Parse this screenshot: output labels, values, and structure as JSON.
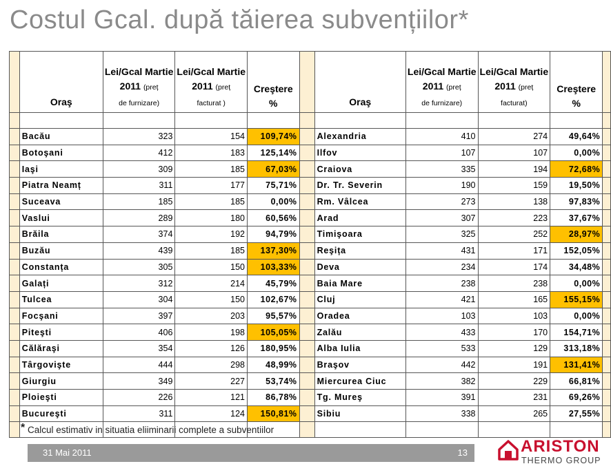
{
  "title": "Costul Gcal. după tăierea subvențiilor*",
  "header": {
    "city": "Oraş",
    "col1_top": "Lei/Gcal Martie",
    "col1_year": "2011",
    "col1_note_a": "(preț",
    "col1_note_b": "de furnizare)",
    "col2_top": "Lei/Gcal Martie",
    "col2_year": "2011",
    "col2_note_a": "(preț",
    "col2_note_b": "facturat )",
    "col2_note_b_right": "facturat)",
    "col3": "Creştere %"
  },
  "left_rows": [
    {
      "city": "Bacău",
      "supply": "323",
      "billed": "154",
      "growth": "109,74%",
      "highlight": true
    },
    {
      "city": "Botoşani",
      "supply": "412",
      "billed": "183",
      "growth": "125,14%",
      "highlight": false
    },
    {
      "city": "Iaşi",
      "supply": "309",
      "billed": "185",
      "growth": "67,03%",
      "highlight": true
    },
    {
      "city": "Piatra Neamț",
      "supply": "311",
      "billed": "177",
      "growth": "75,71%",
      "highlight": false
    },
    {
      "city": "Suceava",
      "supply": "185",
      "billed": "185",
      "growth": "0,00%",
      "highlight": false
    },
    {
      "city": "Vaslui",
      "supply": "289",
      "billed": "180",
      "growth": "60,56%",
      "highlight": false
    },
    {
      "city": "Brăila",
      "supply": "374",
      "billed": "192",
      "growth": "94,79%",
      "highlight": false
    },
    {
      "city": "Buzău",
      "supply": "439",
      "billed": "185",
      "growth": "137,30%",
      "highlight": true
    },
    {
      "city": "Constanța",
      "supply": "305",
      "billed": "150",
      "growth": "103,33%",
      "highlight": true
    },
    {
      "city": "Galați",
      "supply": "312",
      "billed": "214",
      "growth": "45,79%",
      "highlight": false
    },
    {
      "city": "Tulcea",
      "supply": "304",
      "billed": "150",
      "growth": "102,67%",
      "highlight": false
    },
    {
      "city": "Focşani",
      "supply": "397",
      "billed": "203",
      "growth": "95,57%",
      "highlight": false
    },
    {
      "city": "Piteşti",
      "supply": "406",
      "billed": "198",
      "growth": "105,05%",
      "highlight": true
    },
    {
      "city": "Călăraşi",
      "supply": "354",
      "billed": "126",
      "growth": "180,95%",
      "highlight": false
    },
    {
      "city": "Târgovişte",
      "supply": "444",
      "billed": "298",
      "growth": "48,99%",
      "highlight": false
    },
    {
      "city": "Giurgiu",
      "supply": "349",
      "billed": "227",
      "growth": "53,74%",
      "highlight": false
    },
    {
      "city": "Ploieşti",
      "supply": "226",
      "billed": "121",
      "growth": "86,78%",
      "highlight": false
    },
    {
      "city": "Bucureşti",
      "supply": "311",
      "billed": "124",
      "growth": "150,81%",
      "highlight": true
    }
  ],
  "right_rows": [
    {
      "city": "Alexandria",
      "supply": "410",
      "billed": "274",
      "growth": "49,64%",
      "highlight": false
    },
    {
      "city": "Ilfov",
      "supply": "107",
      "billed": "107",
      "growth": "0,00%",
      "highlight": false
    },
    {
      "city": "Craiova",
      "supply": "335",
      "billed": "194",
      "growth": "72,68%",
      "highlight": true
    },
    {
      "city": "Dr. Tr. Severin",
      "supply": "190",
      "billed": "159",
      "growth": "19,50%",
      "highlight": false
    },
    {
      "city": "Rm. Vâlcea",
      "supply": "273",
      "billed": "138",
      "growth": "97,83%",
      "highlight": false
    },
    {
      "city": "Arad",
      "supply": "307",
      "billed": "223",
      "growth": "37,67%",
      "highlight": false
    },
    {
      "city": "Timişoara",
      "supply": "325",
      "billed": "252",
      "growth": "28,97%",
      "highlight": true
    },
    {
      "city": "Reşița",
      "supply": "431",
      "billed": "171",
      "growth": "152,05%",
      "highlight": false
    },
    {
      "city": "Deva",
      "supply": "234",
      "billed": "174",
      "growth": "34,48%",
      "highlight": false
    },
    {
      "city": "Baia Mare",
      "supply": "238",
      "billed": "238",
      "growth": "0,00%",
      "highlight": false
    },
    {
      "city": "Cluj",
      "supply": "421",
      "billed": "165",
      "growth": "155,15%",
      "highlight": true
    },
    {
      "city": "Oradea",
      "supply": "103",
      "billed": "103",
      "growth": "0,00%",
      "highlight": false
    },
    {
      "city": "Zalău",
      "supply": "433",
      "billed": "170",
      "growth": "154,71%",
      "highlight": false
    },
    {
      "city": "Alba Iulia",
      "supply": "533",
      "billed": "129",
      "growth": "313,18%",
      "highlight": false
    },
    {
      "city": "Braşov",
      "supply": "442",
      "billed": "191",
      "growth": "131,41%",
      "highlight": true
    },
    {
      "city": "Miercurea Ciuc",
      "supply": "382",
      "billed": "229",
      "growth": "66,81%",
      "highlight": false
    },
    {
      "city": "Tg. Mureş",
      "supply": "391",
      "billed": "231",
      "growth": "69,26%",
      "highlight": false
    },
    {
      "city": "Sibiu",
      "supply": "338",
      "billed": "265",
      "growth": "27,55%",
      "highlight": false
    }
  ],
  "footnote_star": "*",
  "footnote": "Calcul estimativ in situatia eliiminarii complete a subventiilor",
  "footer": {
    "date": "31 Mai 2011",
    "page": "13"
  },
  "logo": {
    "brand": "ARISTON",
    "sub": "THERMO GROUP"
  },
  "colors": {
    "highlight": "#ffc000",
    "side_fill": "#fdf0d3",
    "footer_bar": "#9a9a9a",
    "brand_red": "#c8102e"
  },
  "icons": {
    "logo_mark": "ariston-house-icon"
  }
}
